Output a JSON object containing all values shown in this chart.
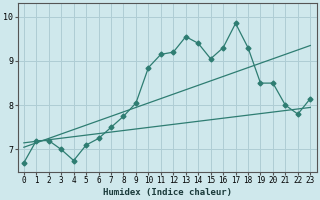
{
  "xlabel": "Humidex (Indice chaleur)",
  "xlim": [
    -0.5,
    23.5
  ],
  "ylim": [
    6.5,
    10.3
  ],
  "yticks": [
    7,
    8,
    9,
    10
  ],
  "xticks": [
    0,
    1,
    2,
    3,
    4,
    5,
    6,
    7,
    8,
    9,
    10,
    11,
    12,
    13,
    14,
    15,
    16,
    17,
    18,
    19,
    20,
    21,
    22,
    23
  ],
  "bg_color": "#cfe8ec",
  "grid_color": "#aecdd4",
  "line_color": "#2e7d72",
  "series1_x": [
    0,
    1,
    2,
    3,
    4,
    5,
    6,
    7,
    8,
    9,
    10,
    11,
    12,
    13,
    14,
    15,
    16,
    17,
    18,
    19,
    20,
    21,
    22,
    23
  ],
  "series1_y": [
    6.7,
    7.2,
    7.2,
    7.0,
    6.75,
    7.1,
    7.25,
    7.5,
    7.75,
    8.05,
    8.85,
    9.15,
    9.2,
    9.55,
    9.4,
    9.05,
    9.3,
    9.85,
    9.3,
    8.5,
    8.5,
    8.0,
    7.8,
    8.15
  ],
  "series2_x": [
    0,
    23
  ],
  "series2_y": [
    7.05,
    9.35
  ],
  "series3_x": [
    0,
    23
  ],
  "series3_y": [
    7.15,
    7.95
  ],
  "tick_fontsize": 5.5,
  "xlabel_fontsize": 6.5
}
